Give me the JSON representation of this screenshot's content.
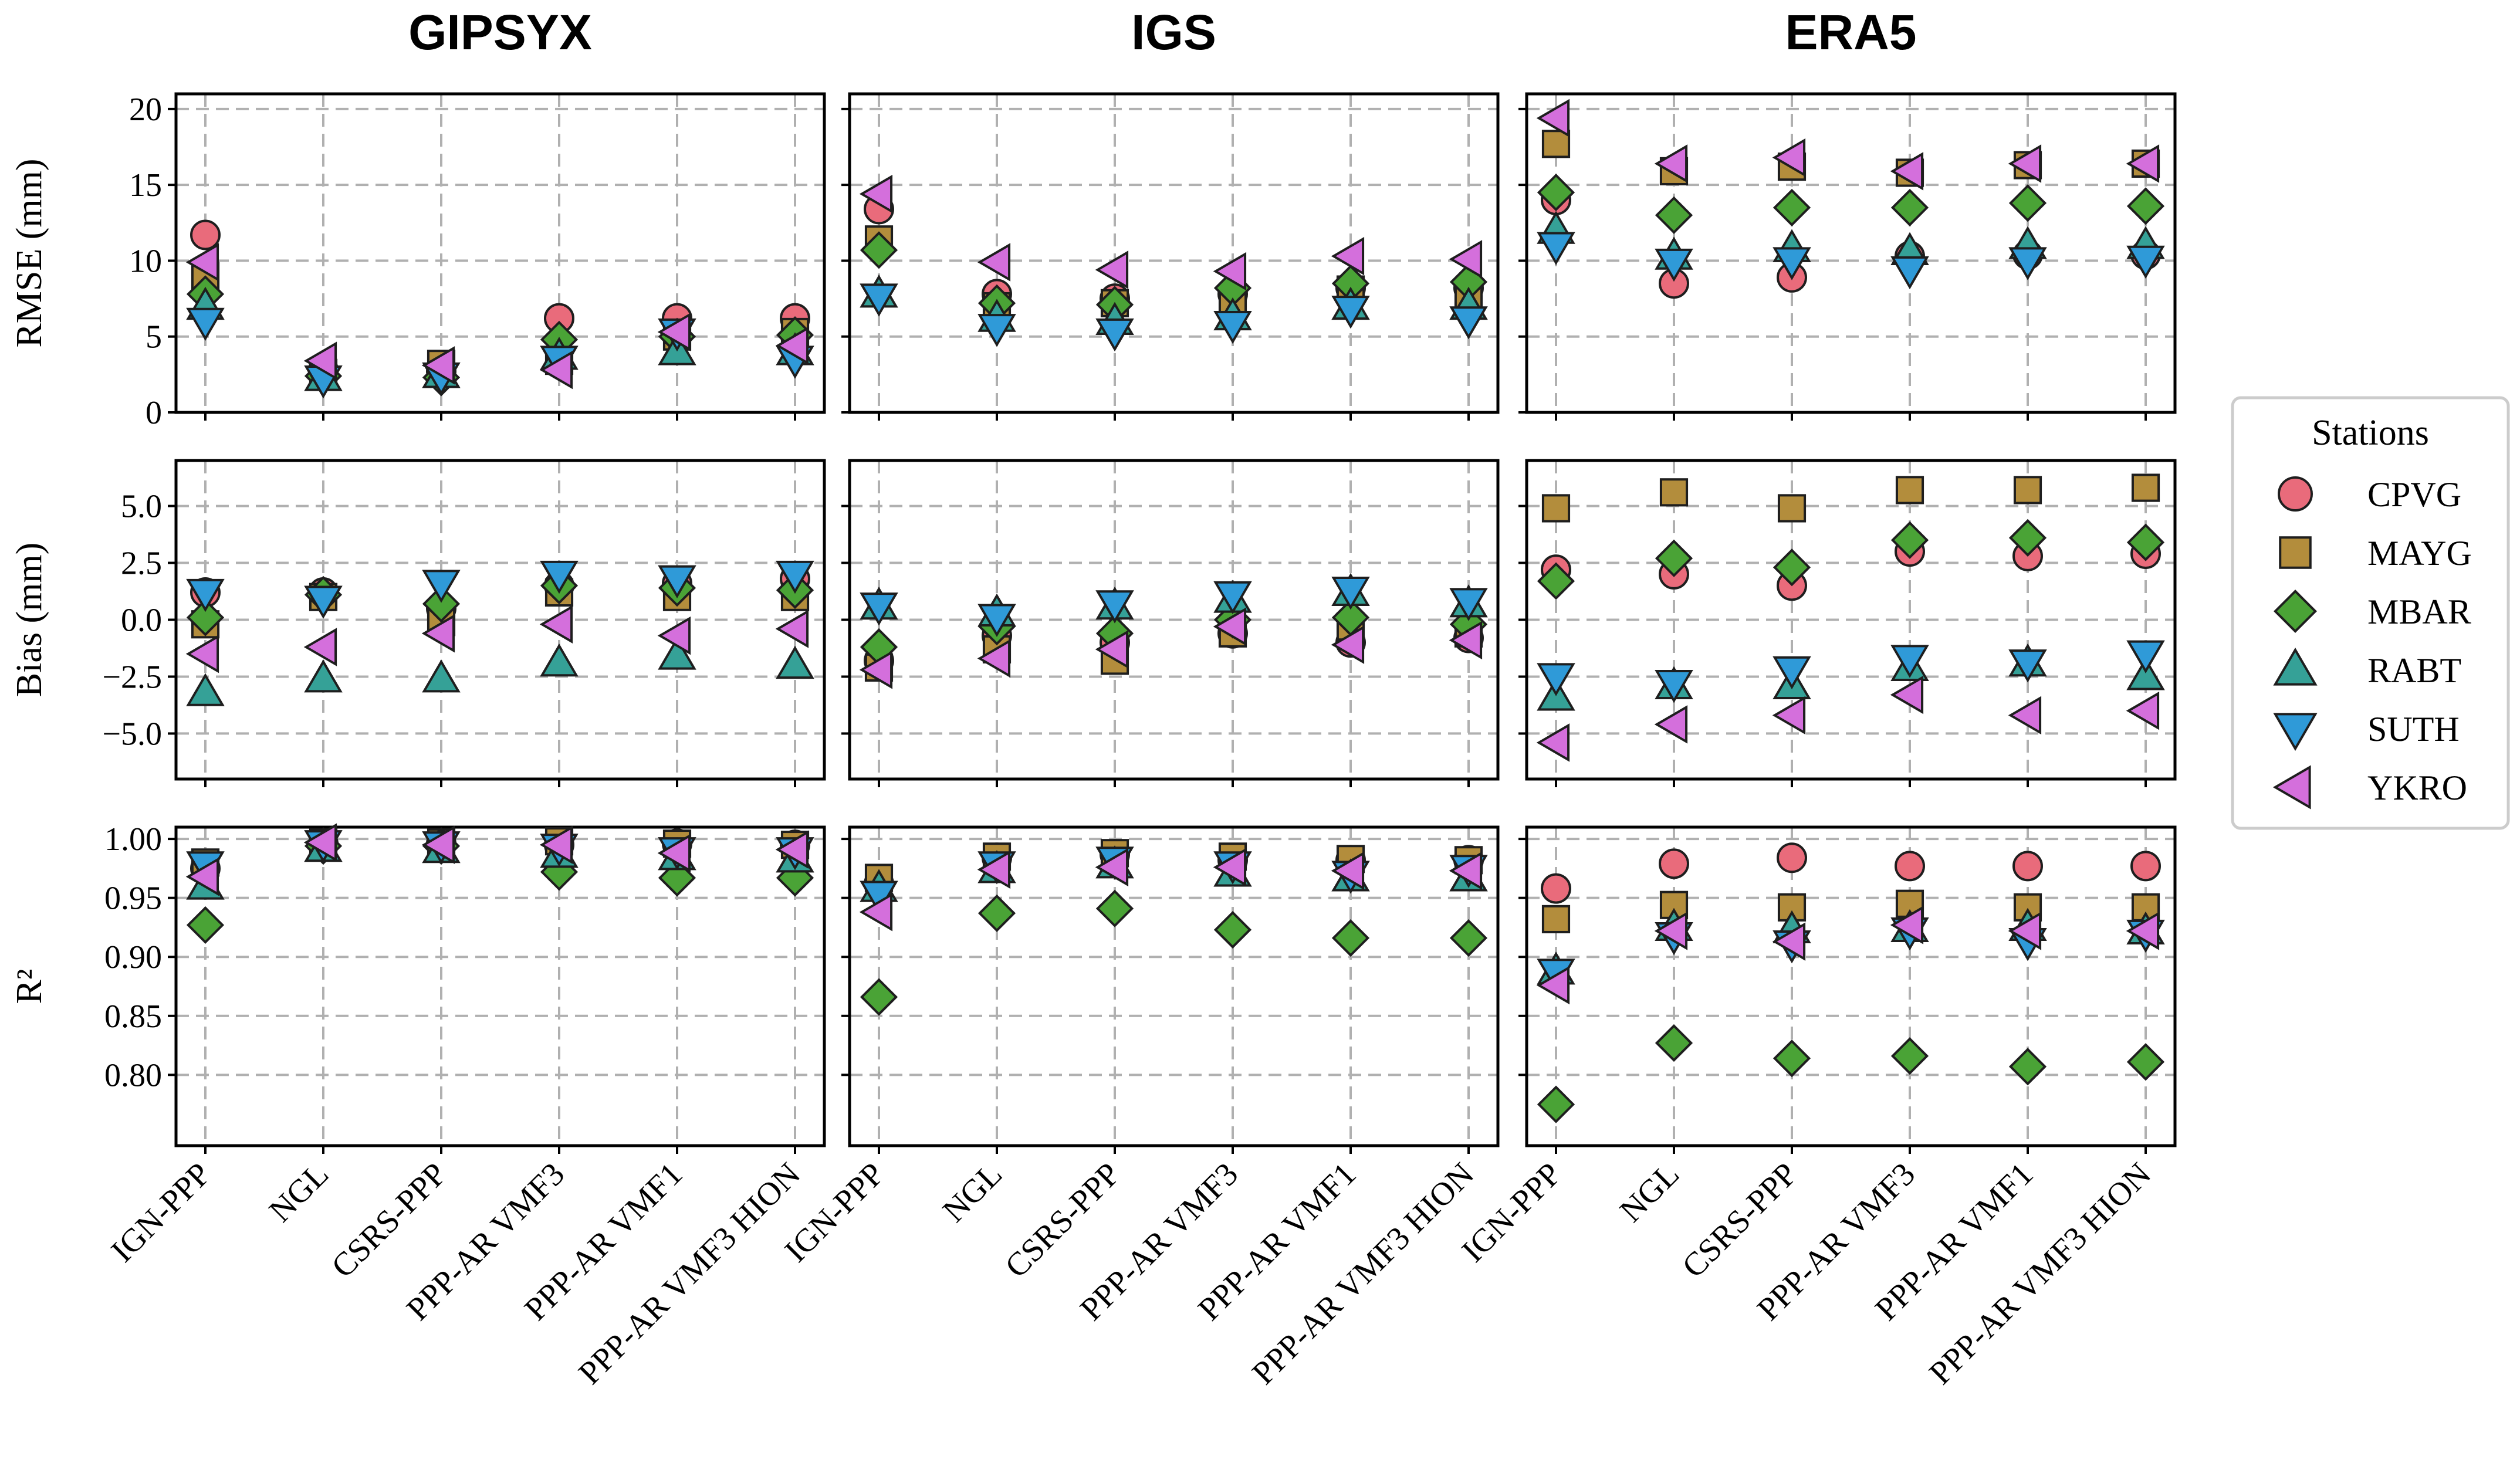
{
  "chart_data": {
    "type": "scatter",
    "columns": [
      "GIPSYX",
      "IGS",
      "ERA5"
    ],
    "categories": [
      "IGN-PPP",
      "NGL",
      "CSRS-PPP",
      "PPP-AR VMF3",
      "PPP-AR VMF1",
      "PPP-AR VMF3 HION"
    ],
    "legend": {
      "title": "Stations",
      "placement": "right",
      "entries": [
        {
          "name": "CPVG",
          "marker": "circle",
          "color": "#e96b7b"
        },
        {
          "name": "MAYG",
          "marker": "square",
          "color": "#b38d3c"
        },
        {
          "name": "MBAR",
          "marker": "diamond",
          "color": "#4aa336"
        },
        {
          "name": "RABT",
          "marker": "triangle-up",
          "color": "#35a197"
        },
        {
          "name": "SUTH",
          "marker": "triangle-down",
          "color": "#2f9ad8"
        },
        {
          "name": "YKRO",
          "marker": "triangle-left",
          "color": "#d46fdc"
        }
      ]
    },
    "rows": [
      {
        "metric": "RMSE",
        "ylabel": "RMSE (mm)",
        "ylim": [
          0,
          21
        ],
        "ticks": [
          0,
          5,
          10,
          15,
          20
        ],
        "tick_labels": [
          "0",
          "5",
          "10",
          "15",
          "20"
        ],
        "values": {
          "GIPSYX": {
            "CPVG": [
              11.7,
              2.8,
              2.7,
              6.2,
              6.2,
              6.2
            ],
            "MAYG": [
              9.0,
              2.6,
              3.2,
              3.4,
              5.0,
              5.3
            ],
            "MBAR": [
              7.8,
              2.4,
              2.3,
              4.8,
              5.0,
              5.1
            ],
            "RABT": [
              7.0,
              2.3,
              2.5,
              3.7,
              4.0,
              4.0
            ],
            "SUTH": [
              6.0,
              2.2,
              2.4,
              3.5,
              5.3,
              3.5
            ],
            "YKRO": [
              9.9,
              3.4,
              3.1,
              2.8,
              5.3,
              4.4
            ]
          },
          "IGS": {
            "CPVG": [
              13.4,
              7.8,
              7.5,
              7.8,
              8.2,
              8.2
            ],
            "MAYG": [
              11.4,
              7.0,
              7.2,
              7.3,
              8.1,
              7.6
            ],
            "MBAR": [
              10.7,
              7.2,
              7.1,
              8.2,
              8.5,
              8.6
            ],
            "RABT": [
              7.8,
              6.2,
              6.0,
              6.3,
              7.0,
              7.0
            ],
            "SUTH": [
              7.6,
              5.6,
              5.3,
              5.8,
              6.8,
              6.1
            ],
            "YKRO": [
              14.4,
              9.9,
              9.4,
              9.3,
              10.3,
              10.1
            ]
          },
          "ERA5": {
            "CPVG": [
              14.0,
              8.5,
              8.9,
              10.3,
              10.4,
              10.4
            ],
            "MAYG": [
              17.7,
              15.9,
              16.2,
              15.8,
              16.3,
              16.4
            ],
            "MBAR": [
              14.5,
              13.0,
              13.5,
              13.5,
              13.8,
              13.6
            ],
            "RABT": [
              12.0,
              10.3,
              10.8,
              10.6,
              11.0,
              11.0
            ],
            "SUTH": [
              11.0,
              9.9,
              10.0,
              9.4,
              10.0,
              10.1
            ],
            "YKRO": [
              19.4,
              16.4,
              16.8,
              15.9,
              16.4,
              16.4
            ]
          }
        }
      },
      {
        "metric": "Bias",
        "ylabel": "Bias (mm)",
        "ylim": [
          -7,
          7
        ],
        "ticks": [
          -5.0,
          -2.5,
          0.0,
          2.5,
          5.0
        ],
        "tick_labels": [
          "−5.0",
          "−2.5",
          "0.0",
          "2.5",
          "5.0"
        ],
        "values": {
          "GIPSYX": {
            "CPVG": [
              1.2,
              1.2,
              0.5,
              1.5,
              1.6,
              1.8
            ],
            "MAYG": [
              -0.2,
              1.0,
              -0.1,
              1.2,
              1.0,
              1.0
            ],
            "MBAR": [
              0.1,
              1.1,
              0.7,
              1.5,
              1.4,
              1.3
            ],
            "RABT": [
              -3.2,
              -2.6,
              -2.6,
              -1.9,
              -1.6,
              -2.0
            ],
            "SUTH": [
              1.2,
              0.9,
              1.6,
              2.0,
              1.8,
              2.0
            ],
            "YKRO": [
              -1.5,
              -1.2,
              -0.6,
              -0.2,
              -0.7,
              -0.4
            ]
          },
          "IGS": {
            "CPVG": [
              -1.8,
              -0.7,
              -1.0,
              -0.6,
              -1.0,
              -0.8
            ],
            "MAYG": [
              -2.1,
              -1.3,
              -1.8,
              -0.6,
              -0.3,
              -0.6
            ],
            "MBAR": [
              -1.2,
              -0.3,
              -0.6,
              0.0,
              0.1,
              -0.2
            ],
            "RABT": [
              0.6,
              0.3,
              0.6,
              0.9,
              1.2,
              0.7
            ],
            "SUTH": [
              0.6,
              0.1,
              0.7,
              1.1,
              1.3,
              0.8
            ],
            "YKRO": [
              -2.2,
              -1.7,
              -1.3,
              -0.3,
              -1.1,
              -0.9
            ]
          },
          "ERA5": {
            "CPVG": [
              2.2,
              2.0,
              1.5,
              3.0,
              2.8,
              2.9
            ],
            "MAYG": [
              4.9,
              5.6,
              4.9,
              5.7,
              5.7,
              5.8
            ],
            "MBAR": [
              1.7,
              2.7,
              2.3,
              3.5,
              3.6,
              3.4
            ],
            "RABT": [
              -3.4,
              -2.9,
              -2.9,
              -2.1,
              -1.9,
              -2.5
            ],
            "SUTH": [
              -2.5,
              -2.8,
              -2.2,
              -1.7,
              -1.9,
              -1.5
            ],
            "YKRO": [
              -5.4,
              -4.6,
              -4.2,
              -3.3,
              -4.2,
              -4.0
            ]
          }
        }
      },
      {
        "metric": "R2",
        "ylabel": "R²",
        "ylim": [
          0.74,
          1.01
        ],
        "ticks": [
          0.8,
          0.85,
          0.9,
          0.95,
          1.0
        ],
        "tick_labels": [
          "0.80",
          "0.85",
          "0.90",
          "0.95",
          "1.00"
        ],
        "values": {
          "GIPSYX": {
            "CPVG": [
              0.975,
              0.996,
              0.996,
              0.995,
              0.996,
              0.995
            ],
            "MAYG": [
              0.98,
              0.997,
              0.997,
              0.998,
              0.996,
              0.995
            ],
            "MBAR": [
              0.927,
              0.994,
              0.994,
              0.972,
              0.967,
              0.967
            ],
            "RABT": [
              0.96,
              0.992,
              0.991,
              0.987,
              0.985,
              0.983
            ],
            "SUTH": [
              0.978,
              0.996,
              0.995,
              0.993,
              0.99,
              0.99
            ],
            "YKRO": [
              0.968,
              0.997,
              0.995,
              0.995,
              0.988,
              0.991
            ]
          },
          "IGS": {
            "CPVG": [
              0.962,
              0.984,
              0.987,
              0.982,
              0.982,
              0.982
            ],
            "MAYG": [
              0.967,
              0.985,
              0.988,
              0.985,
              0.983,
              0.982
            ],
            "MBAR": [
              0.866,
              0.937,
              0.941,
              0.923,
              0.916,
              0.916
            ],
            "RABT": [
              0.958,
              0.974,
              0.978,
              0.971,
              0.967,
              0.967
            ],
            "SUTH": [
              0.953,
              0.978,
              0.982,
              0.978,
              0.97,
              0.975
            ],
            "YKRO": [
              0.938,
              0.974,
              0.976,
              0.976,
              0.973,
              0.973
            ]
          },
          "ERA5": {
            "CPVG": [
              0.958,
              0.979,
              0.984,
              0.977,
              0.977,
              0.977
            ],
            "MAYG": [
              0.932,
              0.944,
              0.942,
              0.945,
              0.942,
              0.942
            ],
            "MBAR": [
              0.775,
              0.827,
              0.814,
              0.816,
              0.807,
              0.811
            ],
            "RABT": [
              0.888,
              0.925,
              0.923,
              0.924,
              0.925,
              0.922
            ],
            "SUTH": [
              0.887,
              0.918,
              0.911,
              0.922,
              0.913,
              0.92
            ],
            "YKRO": [
              0.876,
              0.922,
              0.913,
              0.927,
              0.922,
              0.922
            ]
          }
        }
      }
    ]
  }
}
